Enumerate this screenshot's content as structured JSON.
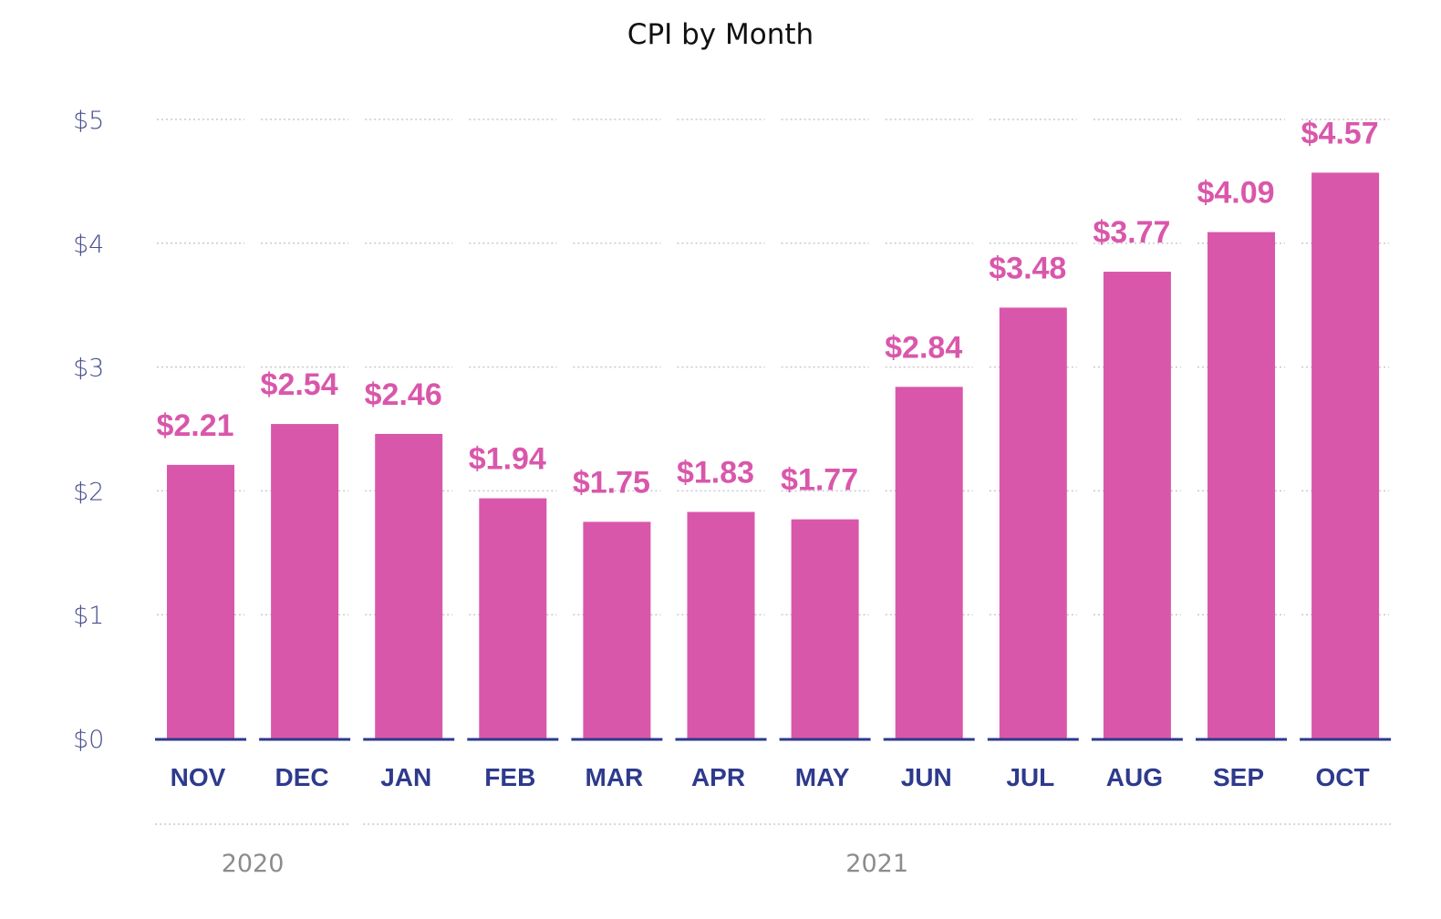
{
  "chart_data": {
    "type": "bar",
    "title": "CPI by Month",
    "xlabel": "",
    "ylabel": "",
    "categories": [
      "NOV",
      "DEC",
      "JAN",
      "FEB",
      "MAR",
      "APR",
      "MAY",
      "JUN",
      "JUL",
      "AUG",
      "SEP",
      "OCT"
    ],
    "values": [
      2.21,
      2.54,
      2.46,
      1.94,
      1.75,
      1.83,
      1.77,
      2.84,
      3.48,
      3.77,
      4.09,
      4.57
    ],
    "value_labels": [
      "$2.21",
      "$2.54",
      "$2.46",
      "$1.94",
      "$1.75",
      "$1.83",
      "$1.77",
      "$2.84",
      "$3.48",
      "$3.77",
      "$4.09",
      "$4.57"
    ],
    "y_ticks": [
      "$0",
      "$1",
      "$2",
      "$3",
      "$4",
      "$5"
    ],
    "ylim": [
      0,
      5
    ],
    "grid": true,
    "legend": "none",
    "year_groups": [
      {
        "label": "2020",
        "months": [
          "NOV",
          "DEC"
        ]
      },
      {
        "label": "2021",
        "months": [
          "JAN",
          "FEB",
          "MAR",
          "APR",
          "MAY",
          "JUN",
          "JUL",
          "AUG",
          "SEP",
          "OCT"
        ]
      }
    ]
  },
  "colors": {
    "bar": "#d957ab",
    "data_label": "#d957ab",
    "axis_line": "#2e3a8c",
    "x_tick": "#2e3a8c",
    "y_tick": "#4a4f8f",
    "grid": "#c9c9c9",
    "year_label": "#8c8c8c",
    "title": "#111111"
  }
}
